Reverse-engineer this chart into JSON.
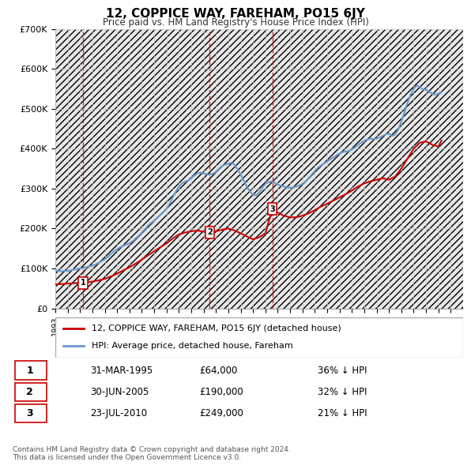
{
  "title": "12, COPPICE WAY, FAREHAM, PO15 6JY",
  "subtitle": "Price paid vs. HM Land Registry's House Price Index (HPI)",
  "ylabel_ticks": [
    "£0",
    "£100K",
    "£200K",
    "£300K",
    "£400K",
    "£500K",
    "£600K",
    "£700K"
  ],
  "ylim": [
    0,
    700000
  ],
  "xlim_start": 1993,
  "xlim_end": 2026,
  "hpi_color": "#6699cc",
  "price_color": "#cc0000",
  "background_hatch_color": "#e8e8e8",
  "grid_color": "#cccccc",
  "transactions": [
    {
      "num": 1,
      "date": "31-MAR-1995",
      "price": 64000,
      "year": 1995.25,
      "hpi_pct": "36% ↓ HPI"
    },
    {
      "num": 2,
      "date": "30-JUN-2005",
      "price": 190000,
      "year": 2005.5,
      "hpi_pct": "32% ↓ HPI"
    },
    {
      "num": 3,
      "date": "23-JUL-2010",
      "price": 249000,
      "year": 2010.56,
      "hpi_pct": "21% ↓ HPI"
    }
  ],
  "legend_label_price": "12, COPPICE WAY, FAREHAM, PO15 6JY (detached house)",
  "legend_label_hpi": "HPI: Average price, detached house, Fareham",
  "footer": "Contains HM Land Registry data © Crown copyright and database right 2024.\nThis data is licensed under the Open Government Licence v3.0.",
  "hpi_data_x": [
    1993,
    1993.25,
    1993.5,
    1993.75,
    1994,
    1994.25,
    1994.5,
    1994.75,
    1995,
    1995.25,
    1995.5,
    1995.75,
    1996,
    1996.25,
    1996.5,
    1996.75,
    1997,
    1997.25,
    1997.5,
    1997.75,
    1998,
    1998.25,
    1998.5,
    1998.75,
    1999,
    1999.25,
    1999.5,
    1999.75,
    2000,
    2000.25,
    2000.5,
    2000.75,
    2001,
    2001.25,
    2001.5,
    2001.75,
    2002,
    2002.25,
    2002.5,
    2002.75,
    2003,
    2003.25,
    2003.5,
    2003.75,
    2004,
    2004.25,
    2004.5,
    2004.75,
    2005,
    2005.25,
    2005.5,
    2005.75,
    2006,
    2006.25,
    2006.5,
    2006.75,
    2007,
    2007.25,
    2007.5,
    2007.75,
    2008,
    2008.25,
    2008.5,
    2008.75,
    2009,
    2009.25,
    2009.5,
    2009.75,
    2010,
    2010.25,
    2010.5,
    2010.75,
    2011,
    2011.25,
    2011.5,
    2011.75,
    2012,
    2012.25,
    2012.5,
    2012.75,
    2013,
    2013.25,
    2013.5,
    2013.75,
    2014,
    2014.25,
    2014.5,
    2014.75,
    2015,
    2015.25,
    2015.5,
    2015.75,
    2016,
    2016.25,
    2016.5,
    2016.75,
    2017,
    2017.25,
    2017.5,
    2017.75,
    2018,
    2018.25,
    2018.5,
    2018.75,
    2019,
    2019.25,
    2019.5,
    2019.75,
    2020,
    2020.25,
    2020.5,
    2020.75,
    2021,
    2021.25,
    2021.5,
    2021.75,
    2022,
    2022.25,
    2022.5,
    2022.75,
    2023,
    2023.25,
    2023.5,
    2023.75,
    2024,
    2024.25
  ],
  "hpi_data_y": [
    95000,
    94000,
    93000,
    93500,
    94000,
    95000,
    97000,
    99000,
    100000,
    101000,
    103000,
    105000,
    107000,
    110000,
    114000,
    118000,
    123000,
    129000,
    136000,
    143000,
    148000,
    153000,
    157000,
    160000,
    163000,
    168000,
    175000,
    182000,
    190000,
    198000,
    207000,
    214000,
    220000,
    227000,
    234000,
    241000,
    250000,
    262000,
    278000,
    292000,
    305000,
    313000,
    318000,
    320000,
    326000,
    333000,
    338000,
    340000,
    338000,
    336000,
    335000,
    337000,
    342000,
    350000,
    357000,
    360000,
    362000,
    365000,
    360000,
    348000,
    335000,
    320000,
    305000,
    292000,
    285000,
    283000,
    290000,
    302000,
    312000,
    316000,
    318000,
    315000,
    310000,
    307000,
    305000,
    303000,
    302000,
    303000,
    305000,
    308000,
    312000,
    318000,
    326000,
    335000,
    344000,
    352000,
    358000,
    363000,
    368000,
    373000,
    378000,
    383000,
    388000,
    391000,
    393000,
    394000,
    398000,
    403000,
    409000,
    415000,
    420000,
    423000,
    425000,
    424000,
    425000,
    428000,
    432000,
    436000,
    438000,
    432000,
    435000,
    448000,
    468000,
    490000,
    515000,
    535000,
    550000,
    558000,
    555000,
    548000,
    548000,
    542000,
    538000,
    535000,
    538000,
    542000
  ],
  "price_data_x": [
    1993,
    1993.5,
    1994,
    1994.5,
    1995,
    1995.25,
    1995.5,
    1996,
    1996.5,
    1997,
    1997.5,
    1998,
    1998.5,
    1999,
    1999.5,
    2000,
    2000.5,
    2001,
    2001.5,
    2002,
    2002.5,
    2003,
    2003.5,
    2004,
    2004.5,
    2005,
    2005.5,
    2006,
    2006.5,
    2007,
    2007.5,
    2008,
    2008.5,
    2009,
    2009.5,
    2010,
    2010.56,
    2011,
    2011.5,
    2012,
    2012.5,
    2013,
    2013.5,
    2014,
    2014.5,
    2015,
    2015.5,
    2016,
    2016.5,
    2017,
    2017.5,
    2018,
    2018.5,
    2019,
    2019.5,
    2020,
    2020.5,
    2021,
    2021.5,
    2022,
    2022.5,
    2023,
    2023.5,
    2024,
    2024.25
  ],
  "price_data_y": [
    60000,
    61000,
    62000,
    63000,
    64000,
    64000,
    65000,
    67000,
    70000,
    74000,
    80000,
    87000,
    95000,
    103000,
    112000,
    122000,
    133000,
    143000,
    153000,
    163000,
    175000,
    185000,
    190000,
    193000,
    195000,
    192000,
    190000,
    193000,
    197000,
    200000,
    195000,
    188000,
    180000,
    173000,
    178000,
    188000,
    249000,
    240000,
    232000,
    228000,
    228000,
    232000,
    238000,
    246000,
    255000,
    262000,
    270000,
    278000,
    286000,
    295000,
    305000,
    313000,
    318000,
    322000,
    326000,
    322000,
    330000,
    350000,
    375000,
    400000,
    415000,
    418000,
    410000,
    405000,
    420000
  ]
}
